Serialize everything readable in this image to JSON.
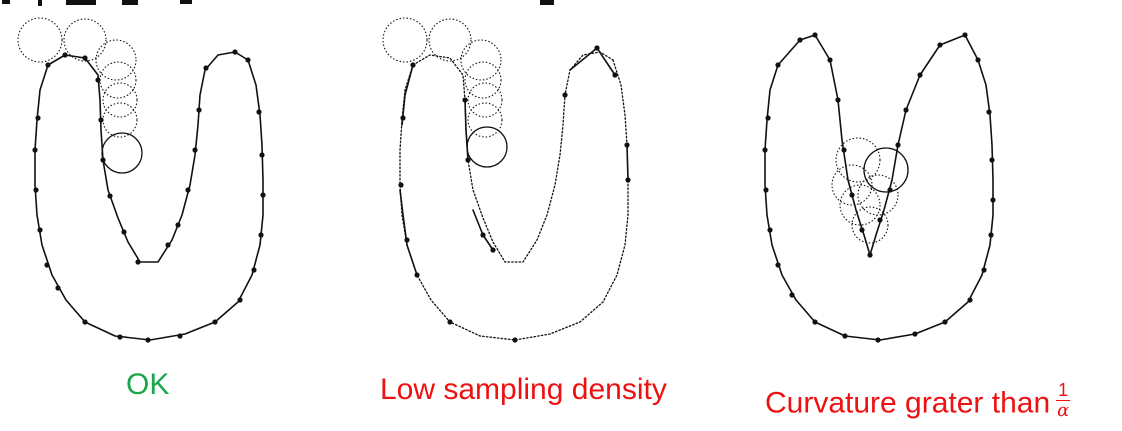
{
  "panels": [
    {
      "id": "ok",
      "caption": "OK",
      "color": "#1aa64a"
    },
    {
      "id": "low",
      "caption": "Low sampling density",
      "color": "#ee1111"
    },
    {
      "id": "curv",
      "caption": "Curvature grater than",
      "fraction_numerator": "1",
      "fraction_denominator": "α",
      "color": "#ee1111"
    }
  ],
  "colors": {
    "ink": "#111111",
    "background": "#ffffff"
  }
}
